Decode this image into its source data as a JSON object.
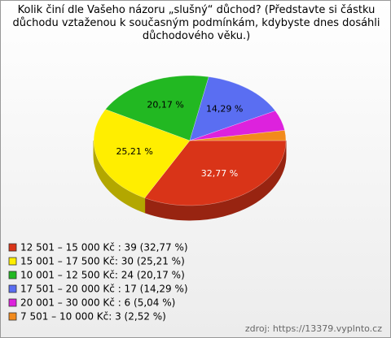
{
  "chart_data": {
    "type": "pie3d",
    "title": "Kolik činí dle Vašeho názoru „slušný“ důchod? (Představte si částku důchodu vztaženou k současným podmínkám, kdybyste dnes dosáhli důchodového věku.)",
    "categories": [
      "12 501 – 15 000 Kč : 39 (32,77 %)",
      "15 001 – 17 500 Kč: 30 (25,21 %)",
      "10 001 – 12 500 Kč: 24 (20,17 %)",
      "17 501 – 20 000 Kč : 17 (14,29 %)",
      "20 001 – 30 000 Kč : 6 (5,04 %)",
      "7 501 – 10 000 Kč: 3 (2,52 %)"
    ],
    "values": [
      32.77,
      25.21,
      20.17,
      14.29,
      5.04,
      2.52
    ],
    "value_labels": [
      "32,77 %",
      "25,21 %",
      "20,17 %",
      "14,29 %",
      null,
      null
    ],
    "colors": [
      "#d93418",
      "#ffee00",
      "#22b822",
      "#5a6ef2",
      "#dd22dd",
      "#f28a1c"
    ],
    "source": "zdroj: https://13379.vyplnto.cz"
  }
}
